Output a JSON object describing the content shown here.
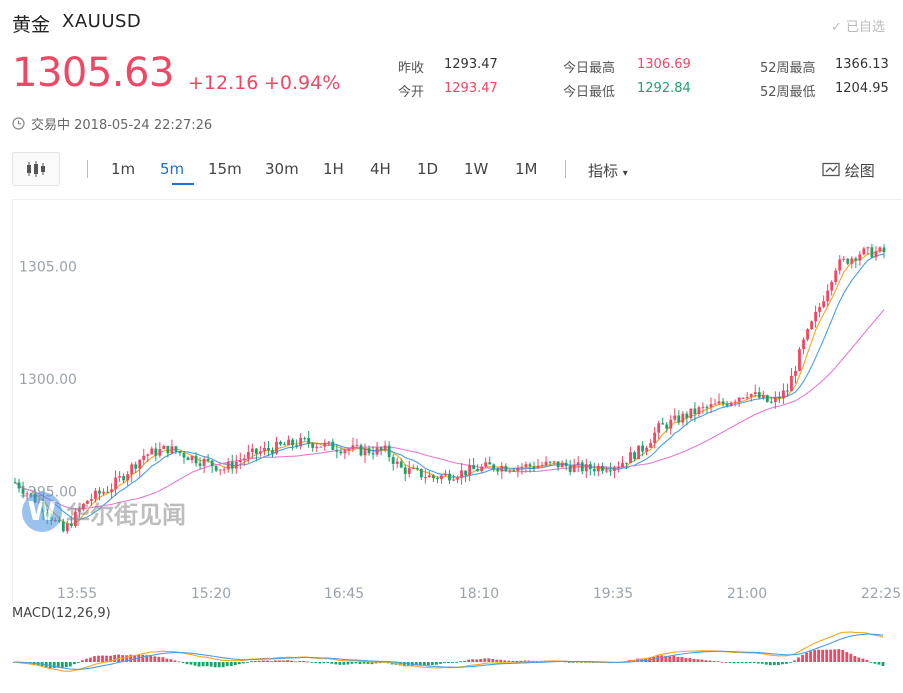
{
  "header": {
    "name": "黄金",
    "code": "XAUUSD",
    "watch_label": "已自选",
    "price": "1305.63",
    "change": "+12.16",
    "change_pct": "+0.94%"
  },
  "stats": [
    {
      "label": "昨收",
      "value": "1293.47",
      "tone": "neutral"
    },
    {
      "label": "今开",
      "value": "1293.47",
      "tone": "up"
    },
    {
      "label": "今日最高",
      "value": "1306.69",
      "tone": "up"
    },
    {
      "label": "今日最低",
      "value": "1292.84",
      "tone": "down"
    },
    {
      "label": "52周最高",
      "value": "1366.13",
      "tone": "neutral"
    },
    {
      "label": "52周最低",
      "value": "1204.95",
      "tone": "neutral"
    }
  ],
  "status": {
    "text": "交易中 2018-05-24 22:27:26",
    "icon": "clock-icon"
  },
  "toolbar": {
    "chart_type_icon": "candlestick-icon",
    "periods": [
      "1m",
      "5m",
      "15m",
      "30m",
      "1H",
      "4H",
      "1D",
      "1W",
      "1M"
    ],
    "active_period": "5m",
    "indicator_label": "指标",
    "draw_label": "绘图"
  },
  "watermark": {
    "letter": "W",
    "text": "华尔街见闻"
  },
  "colors": {
    "up": "#f04864",
    "down": "#1aa26b",
    "accent": "#1f6fd1",
    "ma1": "#f5a623",
    "ma2": "#4a9fe3",
    "ma3": "#e87ad2"
  },
  "chart_data": {
    "type": "candlestick",
    "y_ticks": [
      "1305.00",
      "1300.00",
      "1295.00"
    ],
    "x_ticks": [
      "13:55",
      "15:20",
      "16:45",
      "18:10",
      "19:35",
      "21:00",
      "22:25"
    ],
    "ylim": [
      1291.5,
      1307.5
    ],
    "last_close": 1305.63,
    "ma_lines": [
      "ma1",
      "ma2",
      "ma3"
    ],
    "macd_label": "MACD(12,26,9)"
  }
}
